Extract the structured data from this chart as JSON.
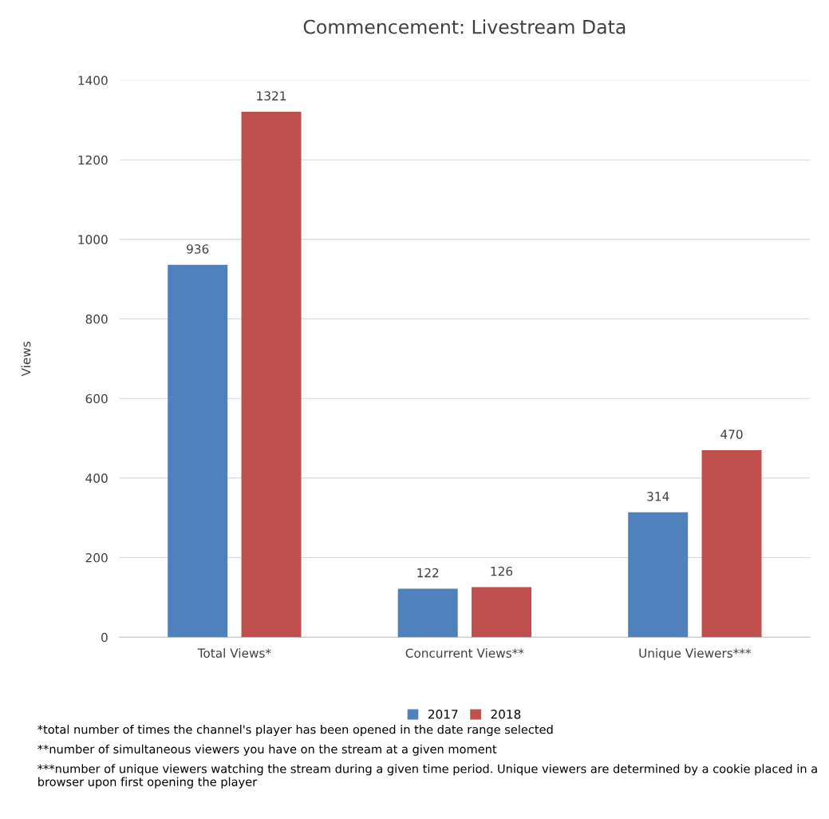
{
  "chart_data": {
    "type": "bar",
    "title": "Commencement: Livestream Data",
    "ylabel": "Views",
    "categories": [
      "Total Views*",
      "Concurrent Views**",
      "Unique Viewers***"
    ],
    "series": [
      {
        "name": "2017",
        "color": "#4f81bd",
        "values": [
          936,
          122,
          314
        ]
      },
      {
        "name": "2018",
        "color": "#c0504d",
        "values": [
          1321,
          126,
          470
        ]
      }
    ],
    "ylim": [
      0,
      1400
    ],
    "yticks": [
      0,
      200,
      400,
      600,
      800,
      1000,
      1200,
      1400
    ],
    "grid": "y",
    "legend": "bottom",
    "data_labels": true,
    "annotations": [
      "*total number of times the channel's player has been opened in the date range selected",
      "**number of simultaneous viewers you have on the stream at a given moment",
      "***number of unique viewers watching the stream during a given time period. Unique viewers are determined by a cookie placed in a browser upon first opening the player"
    ]
  }
}
